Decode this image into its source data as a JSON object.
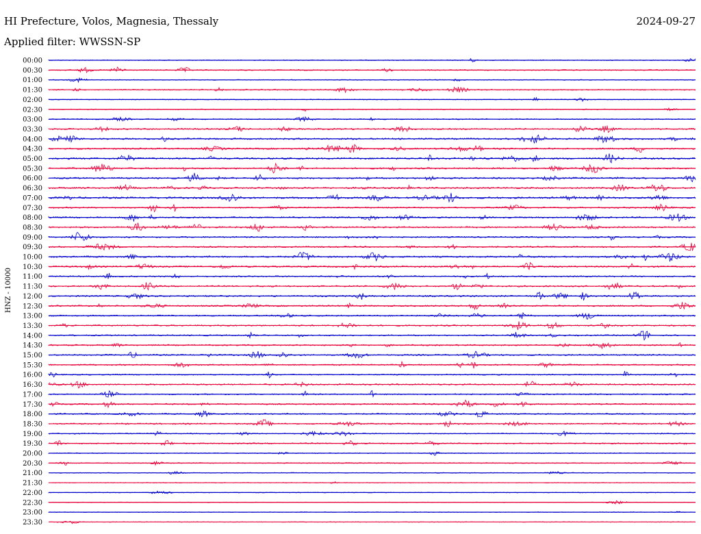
{
  "chart_data": {
    "type": "line",
    "title": "HI Prefecture, Volos, Magnesia, Thessaly",
    "date": "2024-09-27",
    "subtitle": "Applied filter: WWSSN-SP",
    "ylabel": "HNZ - 10000",
    "row_times": [
      "00:00",
      "00:30",
      "01:00",
      "01:30",
      "02:00",
      "02:30",
      "03:00",
      "03:30",
      "04:00",
      "04:30",
      "05:00",
      "05:30",
      "06:00",
      "06:30",
      "07:00",
      "07:30",
      "08:00",
      "08:30",
      "09:00",
      "09:30",
      "10:00",
      "10:30",
      "11:00",
      "11:30",
      "12:00",
      "12:30",
      "13:00",
      "13:30",
      "14:00",
      "14:30",
      "15:00",
      "15:30",
      "16:00",
      "16:30",
      "17:00",
      "17:30",
      "18:00",
      "18:30",
      "19:00",
      "19:30",
      "20:00",
      "20:30",
      "21:00",
      "21:30",
      "22:00",
      "22:30",
      "23:00",
      "23:30"
    ],
    "colors": {
      "even": "#0000cc",
      "odd": "#e8003a"
    },
    "activity": [
      0.1,
      0.2,
      0.1,
      0.25,
      0.12,
      0.12,
      0.22,
      0.35,
      0.45,
      0.45,
      0.5,
      0.45,
      0.45,
      0.45,
      0.55,
      0.4,
      0.4,
      0.45,
      0.35,
      0.35,
      0.45,
      0.45,
      0.35,
      0.4,
      0.4,
      0.4,
      0.35,
      0.35,
      0.35,
      0.35,
      0.35,
      0.35,
      0.3,
      0.35,
      0.3,
      0.35,
      0.3,
      0.35,
      0.25,
      0.3,
      0.12,
      0.15,
      0.1,
      0.06,
      0.05,
      0.05,
      0.04,
      0.04
    ]
  }
}
